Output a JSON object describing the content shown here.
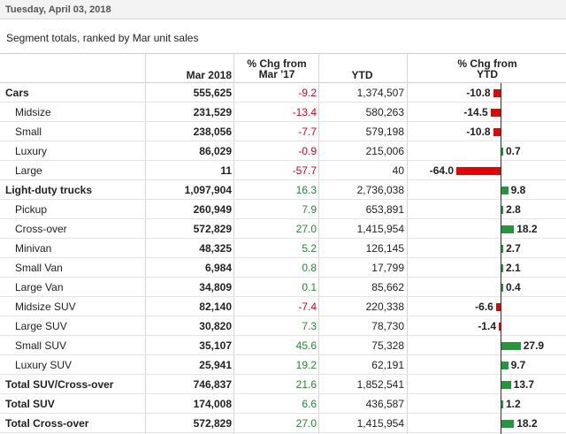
{
  "date": "Tuesday, April 03, 2018",
  "subtitle": "Segment totals, ranked by Mar unit sales",
  "headers": {
    "segment": "",
    "mar": "Mar 2018",
    "chg_line1": "% Chg from",
    "chg_line2": "Mar '17",
    "ytd": "YTD",
    "ytdchg_line1": "% Chg from",
    "ytdchg_line2": "YTD"
  },
  "colors": {
    "negative": "#e60000",
    "positive": "#1f9a3a",
    "neg_text": "#d9001b",
    "pos_text": "#1f8b2f"
  },
  "chart_data": {
    "type": "bar",
    "title": "% Chg from YTD",
    "categories": [
      "Cars",
      "Midsize",
      "Small",
      "Luxury",
      "Large",
      "Light-duty trucks",
      "Pickup",
      "Cross-over",
      "Minivan",
      "Small Van",
      "Large Van",
      "Midsize SUV",
      "Large SUV",
      "Small SUV",
      "Luxury SUV",
      "Total SUV/Cross-over",
      "Total SUV",
      "Total Cross-over"
    ],
    "values": [
      -10.8,
      -14.5,
      -10.8,
      0.7,
      -64.0,
      9.8,
      2.8,
      18.2,
      2.7,
      2.1,
      0.4,
      -6.6,
      -1.4,
      27.9,
      9.7,
      13.7,
      1.2,
      18.2
    ]
  },
  "rows": [
    {
      "segment": "Cars",
      "level": 0,
      "mar": "555,625",
      "chg": "-9.2",
      "chg_sign": "neg",
      "ytd": "1,374,507",
      "ytd_chg": -10.8,
      "ytd_chg_label": "-10.8"
    },
    {
      "segment": "Midsize",
      "level": 1,
      "mar": "231,529",
      "chg": "-13.4",
      "chg_sign": "neg",
      "ytd": "580,263",
      "ytd_chg": -14.5,
      "ytd_chg_label": "-14.5"
    },
    {
      "segment": "Small",
      "level": 1,
      "mar": "238,056",
      "chg": "-7.7",
      "chg_sign": "neg",
      "ytd": "579,198",
      "ytd_chg": -10.8,
      "ytd_chg_label": "-10.8"
    },
    {
      "segment": "Luxury",
      "level": 1,
      "mar": "86,029",
      "chg": "-0.9",
      "chg_sign": "neg",
      "ytd": "215,006",
      "ytd_chg": 0.7,
      "ytd_chg_label": "0.7"
    },
    {
      "segment": "Large",
      "level": 1,
      "mar": "11",
      "chg": "-57.7",
      "chg_sign": "neg",
      "ytd": "40",
      "ytd_chg": -64.0,
      "ytd_chg_label": "-64.0"
    },
    {
      "segment": "Light-duty trucks",
      "level": 0,
      "mar": "1,097,904",
      "chg": "16.3",
      "chg_sign": "pos",
      "ytd": "2,736,038",
      "ytd_chg": 9.8,
      "ytd_chg_label": "9.8"
    },
    {
      "segment": "Pickup",
      "level": 1,
      "mar": "260,949",
      "chg": "7.9",
      "chg_sign": "pos",
      "ytd": "653,891",
      "ytd_chg": 2.8,
      "ytd_chg_label": "2.8"
    },
    {
      "segment": "Cross-over",
      "level": 1,
      "mar": "572,829",
      "chg": "27.0",
      "chg_sign": "pos",
      "ytd": "1,415,954",
      "ytd_chg": 18.2,
      "ytd_chg_label": "18.2"
    },
    {
      "segment": "Minivan",
      "level": 1,
      "mar": "48,325",
      "chg": "5.2",
      "chg_sign": "pos",
      "ytd": "126,145",
      "ytd_chg": 2.7,
      "ytd_chg_label": "2.7"
    },
    {
      "segment": "Small Van",
      "level": 1,
      "mar": "6,984",
      "chg": "0.8",
      "chg_sign": "pos",
      "ytd": "17,799",
      "ytd_chg": 2.1,
      "ytd_chg_label": "2.1"
    },
    {
      "segment": "Large Van",
      "level": 1,
      "mar": "34,809",
      "chg": "0.1",
      "chg_sign": "pos",
      "ytd": "85,662",
      "ytd_chg": 0.4,
      "ytd_chg_label": "0.4"
    },
    {
      "segment": "Midsize SUV",
      "level": 1,
      "mar": "82,140",
      "chg": "-7.4",
      "chg_sign": "neg",
      "ytd": "220,338",
      "ytd_chg": -6.6,
      "ytd_chg_label": "-6.6"
    },
    {
      "segment": "Large SUV",
      "level": 1,
      "mar": "30,820",
      "chg": "7.3",
      "chg_sign": "pos",
      "ytd": "78,730",
      "ytd_chg": -1.4,
      "ytd_chg_label": "-1.4"
    },
    {
      "segment": "Small SUV",
      "level": 1,
      "mar": "35,107",
      "chg": "45.6",
      "chg_sign": "pos",
      "ytd": "75,328",
      "ytd_chg": 27.9,
      "ytd_chg_label": "27.9"
    },
    {
      "segment": "Luxury SUV",
      "level": 1,
      "mar": "25,941",
      "chg": "19.2",
      "chg_sign": "pos",
      "ytd": "62,191",
      "ytd_chg": 9.7,
      "ytd_chg_label": "9.7"
    },
    {
      "segment": "Total SUV/Cross-over",
      "level": 0,
      "mar": "746,837",
      "chg": "21.6",
      "chg_sign": "pos",
      "ytd": "1,852,541",
      "ytd_chg": 13.7,
      "ytd_chg_label": "13.7"
    },
    {
      "segment": "Total SUV",
      "level": 0,
      "mar": "174,008",
      "chg": "6.6",
      "chg_sign": "pos",
      "ytd": "436,587",
      "ytd_chg": 1.2,
      "ytd_chg_label": "1.2"
    },
    {
      "segment": "Total Cross-over",
      "level": 0,
      "mar": "572,829",
      "chg": "27.0",
      "chg_sign": "pos",
      "ytd": "1,415,954",
      "ytd_chg": 18.2,
      "ytd_chg_label": "18.2"
    }
  ]
}
